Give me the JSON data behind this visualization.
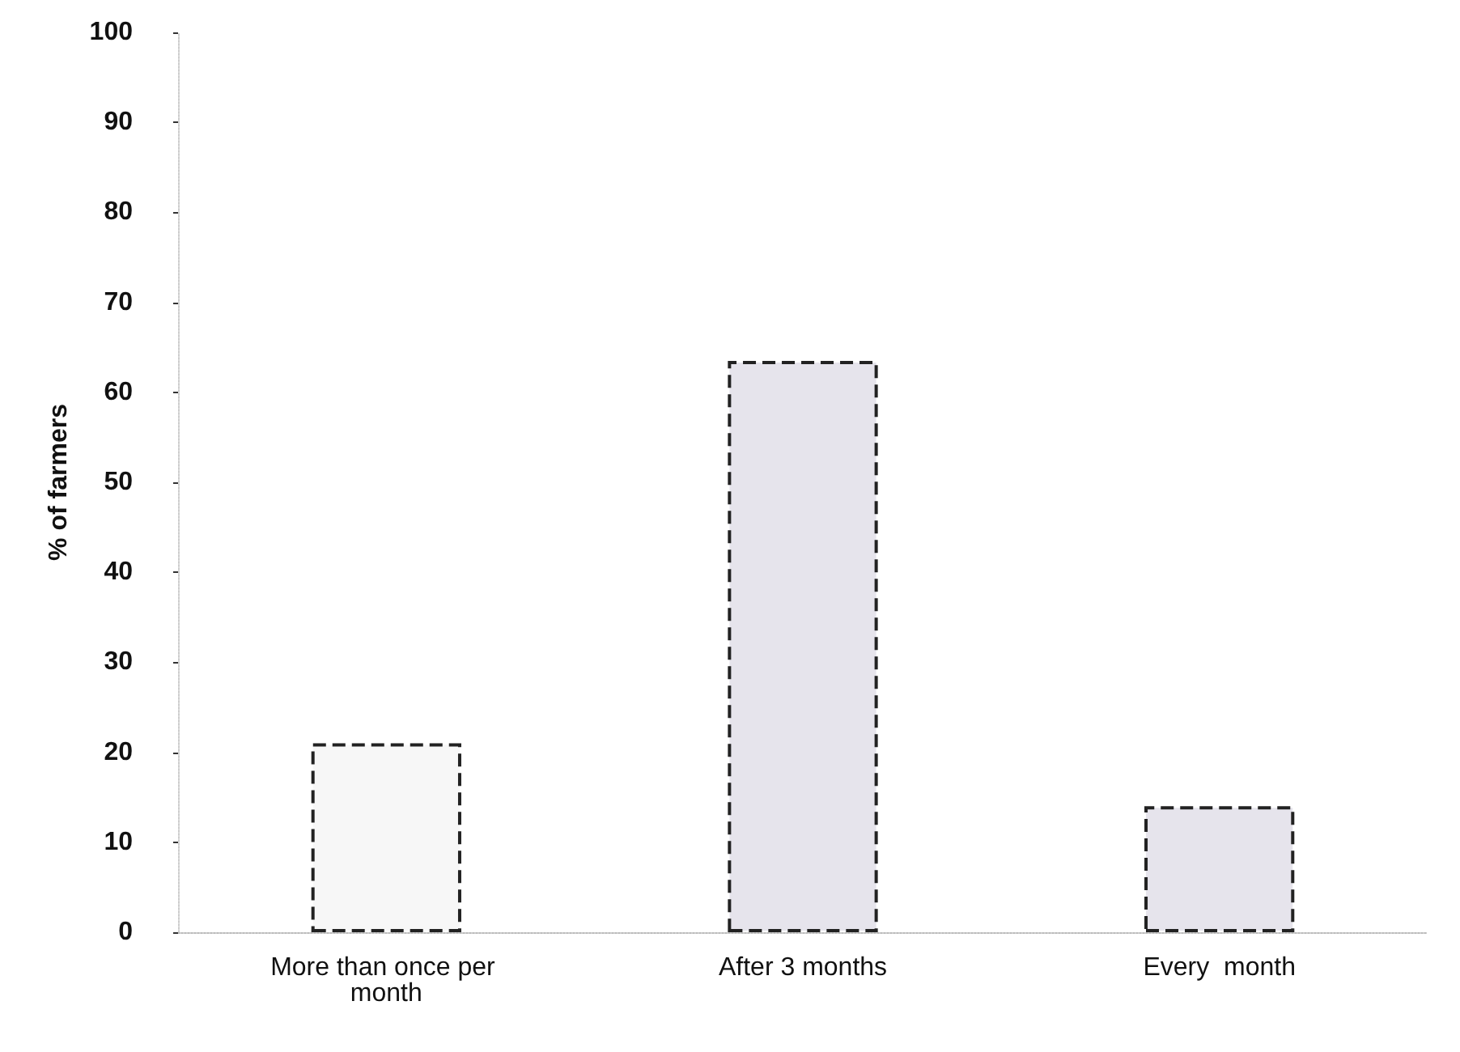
{
  "chart_data": {
    "type": "bar",
    "ylabel": "% of farmers",
    "categories": [
      "More than once per month",
      "After 3 months",
      "Every  month"
    ],
    "values": [
      21,
      63.5,
      14
    ],
    "colors": [
      "#f7f7f7",
      "#e6e4ec",
      "#e6e4ec"
    ],
    "ylim": [
      0,
      100
    ],
    "yticks": [
      0,
      10,
      20,
      30,
      40,
      50,
      60,
      70,
      80,
      90,
      100
    ],
    "grid": false
  }
}
